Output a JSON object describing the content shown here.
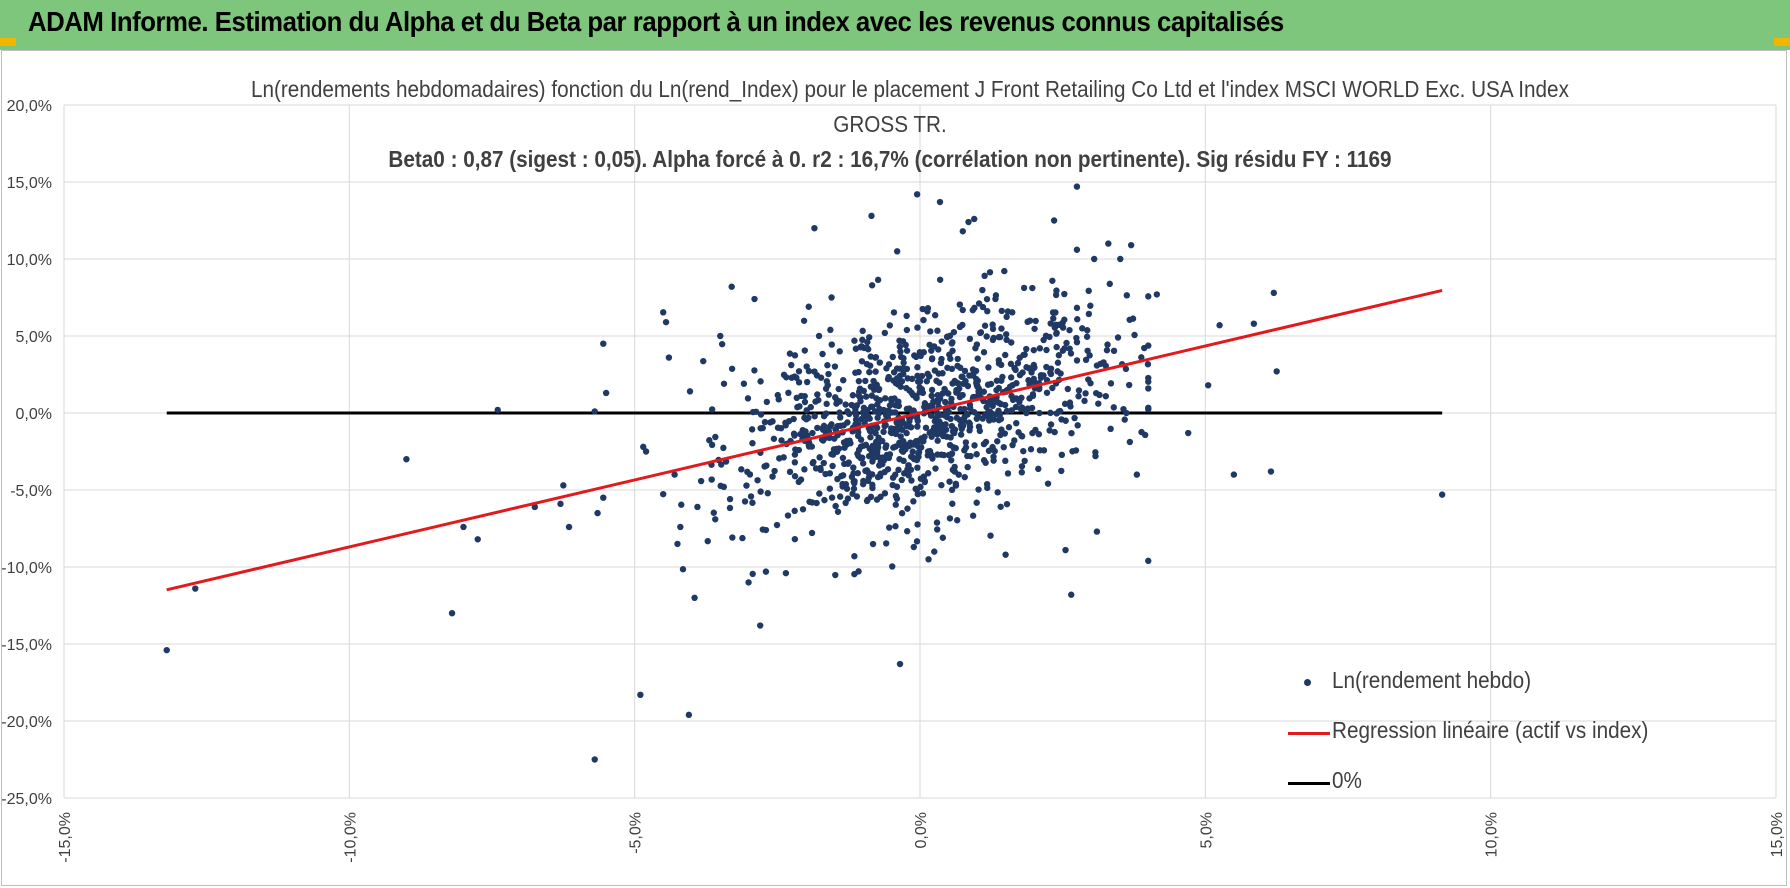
{
  "header": {
    "title": "ADAM Informe. Estimation du Alpha et du Beta par rapport à un index avec les revenus connus capitalisés"
  },
  "colors": {
    "banner": "#7dc67b",
    "points": "#1f3864",
    "regression": "#e31a1c",
    "zero_line": "#000000"
  },
  "chart_data": {
    "type": "scatter",
    "title_lines": [
      "Ln(rendements hebdomadaires) fonction du Ln(rend_Index) pour le placement J Front Retailing Co Ltd et l'index MSCI WORLD Exc. USA Index",
      "GROSS TR.",
      "Beta0 : 0,87 (sigest : 0,05).  Alpha forcé à 0. r2 : 16,7% (corrélation non pertinente). Sig résidu FY : 1169"
    ],
    "xlim": [
      -0.15,
      0.15
    ],
    "ylim": [
      -0.25,
      0.2
    ],
    "x_ticks": [
      "-15,0%",
      "-10,0%",
      "-5,0%",
      "0,0%",
      "5,0%",
      "10,0%",
      "15,0%"
    ],
    "y_ticks": [
      "20,0%",
      "15,0%",
      "10,0%",
      "5,0%",
      "0,0%",
      "-5,0%",
      "-10,0%",
      "-15,0%",
      "-20,0%",
      "-25,0%"
    ],
    "grid": true,
    "legend_position": "bottom-right",
    "beta": 0.87,
    "series": [
      {
        "name": "Ln(rendement hebdo)",
        "kind": "points",
        "approx_count": 1169,
        "x": [
          -0.132,
          -0.127,
          -0.09,
          -0.082,
          -0.08,
          -0.0775,
          -0.074,
          -0.0675,
          -0.063,
          -0.0625,
          -0.0615,
          -0.0565,
          -0.057,
          -0.0555,
          -0.0555,
          -0.055,
          -0.057,
          -0.049,
          -0.0485,
          -0.048,
          -0.044,
          -0.0445,
          -0.043,
          -0.0425,
          -0.042,
          -0.0405,
          -0.0395,
          -0.039,
          -0.035,
          -0.033,
          -0.029,
          -0.027,
          -0.028,
          -0.027,
          -0.0235,
          -0.0195,
          -0.0185,
          -0.0155,
          -0.0115,
          -0.0085,
          -0.004,
          -0.0035,
          -0.0005,
          0.0015,
          0.0025,
          0.0035,
          0.004,
          0.0075,
          0.0085,
          0.0095,
          0.015,
          0.021,
          0.0275,
          0.0265,
          0.0255,
          0.0235,
          0.0275,
          0.033,
          0.031,
          0.037,
          0.038,
          0.04,
          0.0415,
          0.047,
          0.0505,
          0.0525,
          0.055,
          0.0585,
          0.0615,
          0.062,
          0.0625,
          0.0915
        ],
        "y": [
          -0.154,
          -0.114,
          -0.03,
          -0.13,
          -0.074,
          -0.082,
          0.002,
          -0.061,
          -0.059,
          -0.047,
          -0.074,
          -0.065,
          -0.225,
          0.045,
          -0.055,
          0.013,
          0.001,
          -0.183,
          -0.022,
          -0.025,
          0.036,
          0.059,
          -0.04,
          -0.085,
          -0.074,
          -0.196,
          -0.12,
          -0.061,
          0.05,
          0.082,
          0.074,
          -0.103,
          -0.138,
          -0.076,
          -0.104,
          0.069,
          0.12,
          0.075,
          -0.093,
          0.128,
          0.105,
          -0.163,
          0.142,
          -0.095,
          -0.09,
          0.137,
          -0.081,
          0.118,
          0.124,
          0.126,
          -0.092,
          0.042,
          0.147,
          -0.118,
          -0.089,
          0.125,
          0.106,
          0.11,
          -0.077,
          0.109,
          -0.04,
          -0.096,
          0.077,
          -0.013,
          0.018,
          0.057,
          -0.04,
          0.058,
          -0.038,
          0.078,
          0.027,
          -0.053
        ]
      },
      {
        "name": "Regression linéaire (actif vs index)",
        "kind": "line",
        "x": [
          -0.132,
          0.0915
        ],
        "y": [
          -0.1148,
          0.0796
        ]
      },
      {
        "name": "0%",
        "kind": "line",
        "x": [
          -0.132,
          0.0915
        ],
        "y": [
          0,
          0
        ]
      }
    ]
  }
}
